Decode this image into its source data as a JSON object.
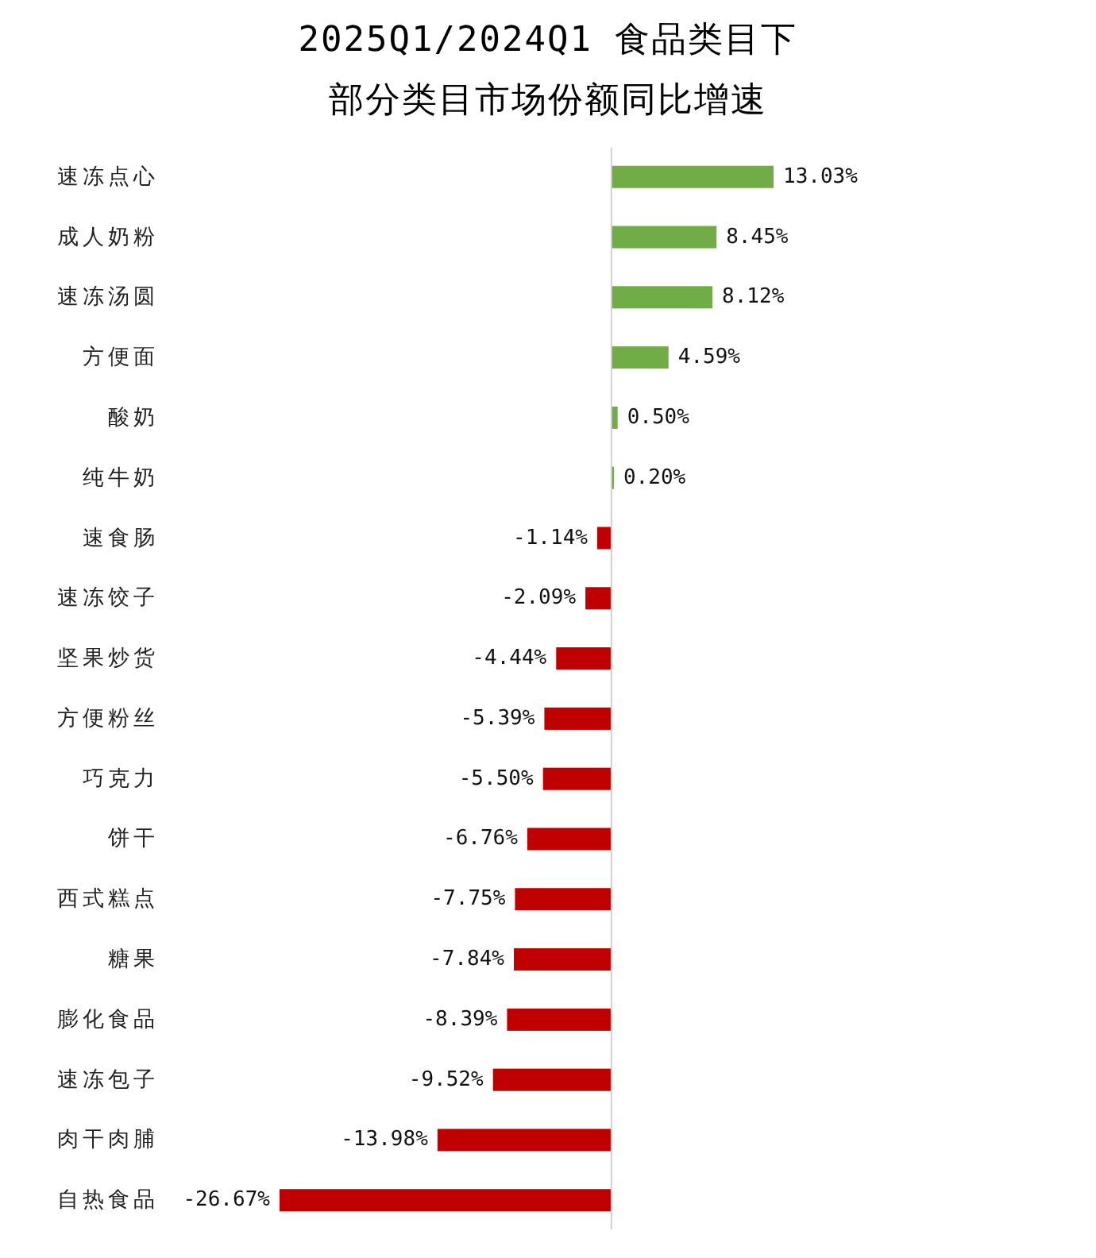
{
  "chart_data": {
    "type": "bar",
    "orientation": "horizontal",
    "title": "2025Q1/2024Q1 食品类目下部分类目市场份额同比增速",
    "categories": [
      "速冻点心",
      "成人奶粉",
      "速冻汤圆",
      "方便面",
      "酸奶",
      "纯牛奶",
      "速食肠",
      "速冻饺子",
      "坚果炒货",
      "方便粉丝",
      "巧克力",
      "饼干",
      "西式糕点",
      "糖果",
      "膨化食品",
      "速冻包子",
      "肉干肉脯",
      "自热食品"
    ],
    "values": [
      13.03,
      8.45,
      8.12,
      4.59,
      0.5,
      0.2,
      -1.14,
      -2.09,
      -4.44,
      -5.39,
      -5.5,
      -6.76,
      -7.75,
      -7.84,
      -8.39,
      -9.52,
      -13.98,
      -26.67
    ],
    "colors": [
      "#70ad47",
      "#70ad47",
      "#70ad47",
      "#70ad47",
      "#70ad47",
      "#70ad47",
      "#c00000",
      "#c00000",
      "#c00000",
      "#c00000",
      "#c00000",
      "#c00000",
      "#c00000",
      "#c00000",
      "#c00000",
      "#c00000",
      "#c00000",
      "#c00000"
    ],
    "value_labels": [
      "13.03%",
      "8.45%",
      "8.12%",
      "4.59%",
      "0.50%",
      "0.20%",
      "-1.14%",
      "-2.09%",
      "-4.44%",
      "-5.39%",
      "-5.50%",
      "-6.76%",
      "-7.75%",
      "-7.84%",
      "-8.39%",
      "-9.52%",
      "-13.98%",
      "-26.67%"
    ]
  }
}
